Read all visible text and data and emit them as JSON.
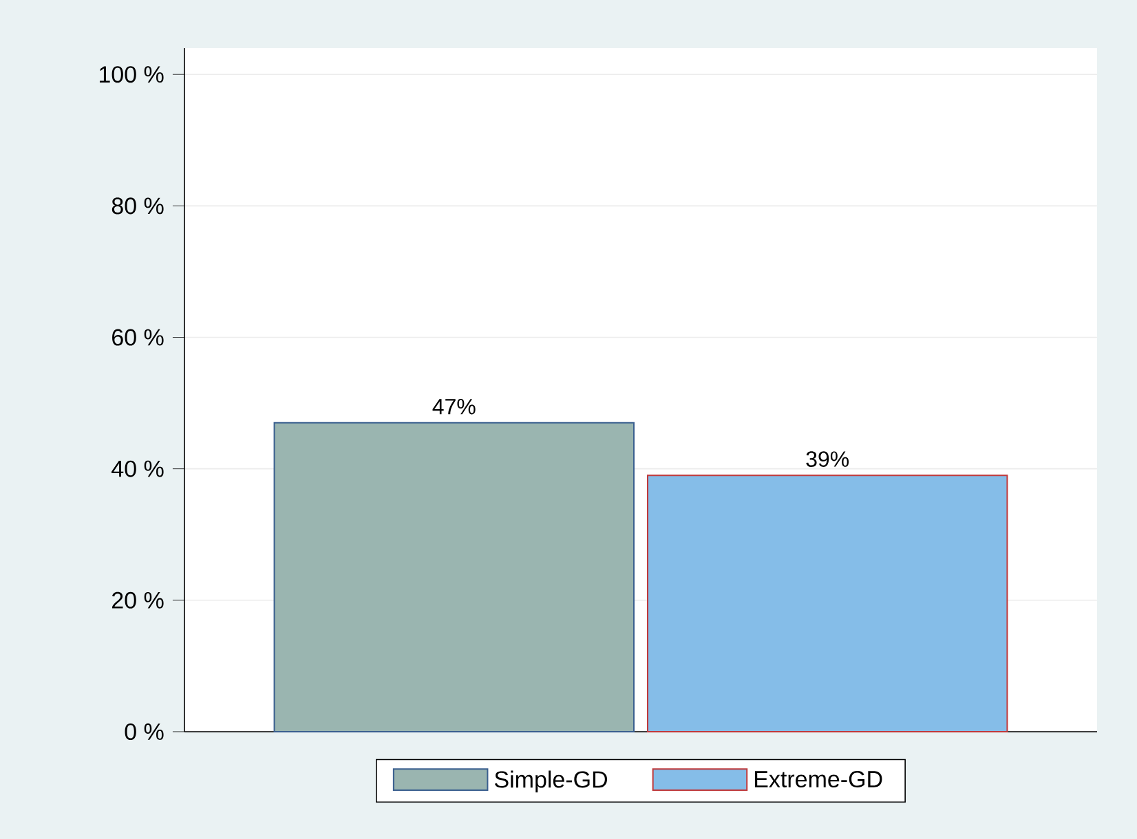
{
  "chart_data": {
    "type": "bar",
    "categories": [
      null
    ],
    "series": [
      {
        "name": "Simple-GD",
        "color": "#9ab5b0",
        "values": [
          47
        ],
        "value_labels": [
          "47%"
        ]
      },
      {
        "name": "Extreme-GD",
        "color": "#85bde8",
        "values": [
          39
        ],
        "value_labels": [
          "39%"
        ]
      }
    ],
    "ylim": [
      0,
      104
    ],
    "yticks": [
      {
        "value": 0,
        "label": "0 %"
      },
      {
        "value": 20,
        "label": "20 %"
      },
      {
        "value": 40,
        "label": "40 %"
      },
      {
        "value": 60,
        "label": "60 %"
      },
      {
        "value": 80,
        "label": "80 %"
      },
      {
        "value": 100,
        "label": "100 %"
      }
    ],
    "grid": "y",
    "legend": "bottom"
  }
}
